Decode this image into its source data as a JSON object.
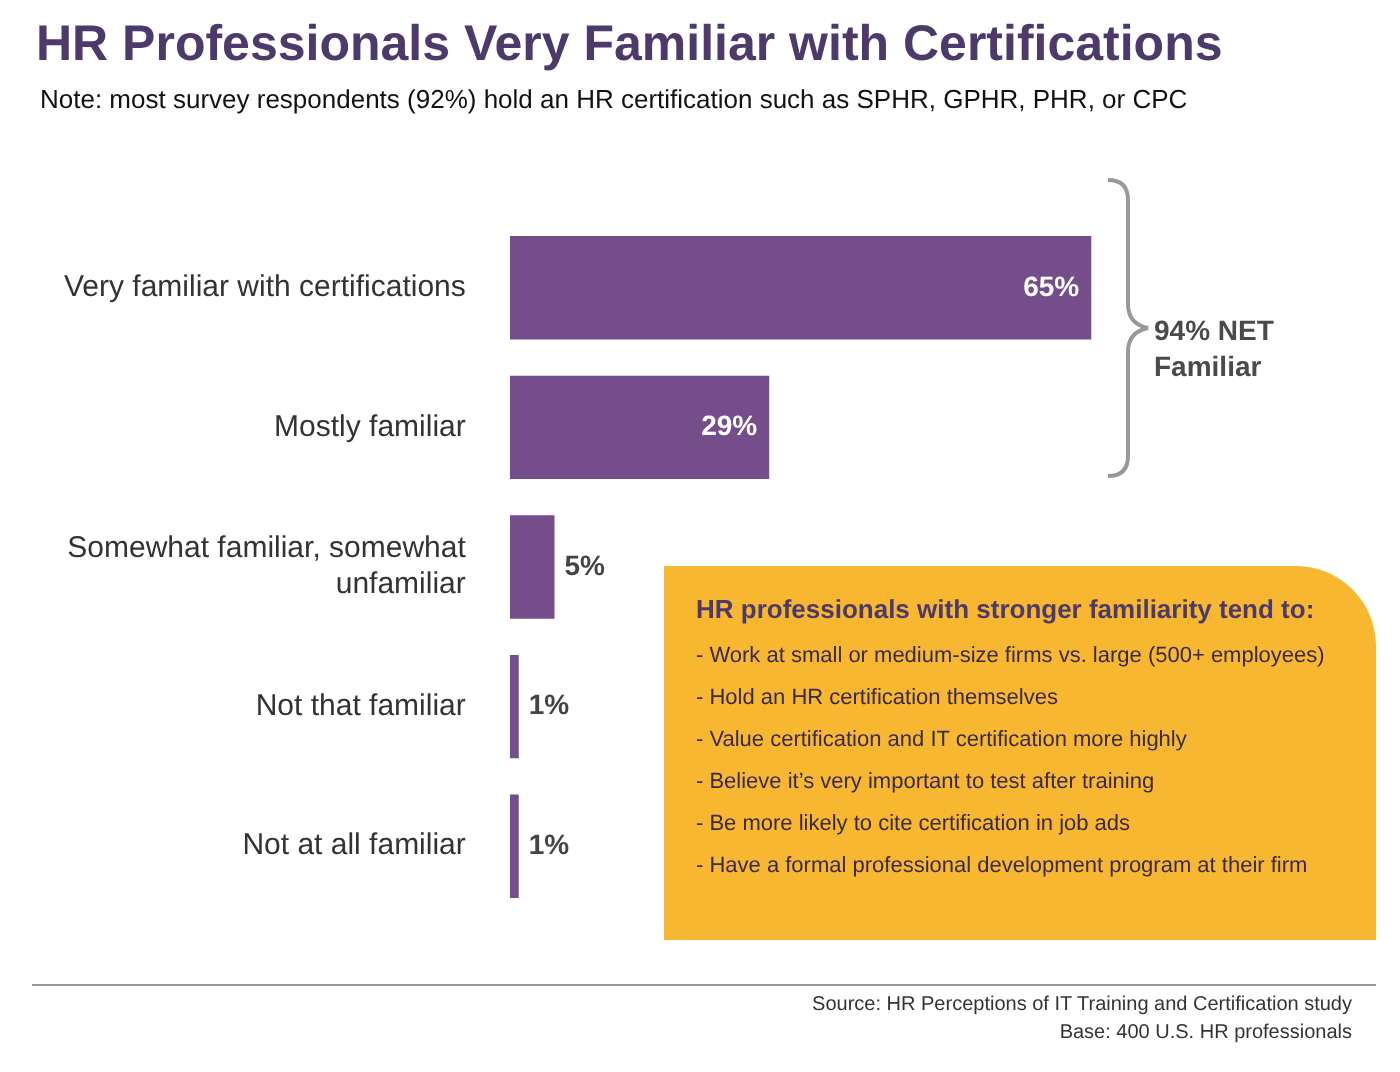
{
  "chart_data": [
    {
      "type": "bar",
      "orientation": "horizontal",
      "title": "HR Professionals Very Familiar with Certifications",
      "subtitle": "Note: most survey respondents (92%) hold an HR certification such as SPHR, GPHR, PHR, or CPC",
      "categories": [
        "Very familiar with certifications",
        "Mostly familiar",
        "Somewhat familiar, somewhat unfamiliar",
        "Not that familiar",
        "Not at all familiar"
      ],
      "values": [
        65,
        29,
        5,
        1,
        1
      ],
      "value_labels": [
        "65%",
        "29%",
        "5%",
        "1%",
        "1%"
      ],
      "color": "#764d8b",
      "legend": false,
      "annotations": [
        "94% NET Familiar",
        "Source: HR Perceptions of IT Training and Certification study",
        "Base: 400 U.S. HR professionals"
      ]
    },
    {
      "type": "other",
      "title": "HR professionals with stronger familiarity tend to:",
      "annotations": [
        "- Work at small or medium-size firms vs. large (500+ employees)",
        "- Hold an HR certification themselves",
        "- Value certification and IT certification more highly",
        "- Believe it’s very important to test after training",
        "- Be more likely to cite certification in job ads",
        "- Have a formal professional development program at their firm"
      ]
    }
  ]
}
